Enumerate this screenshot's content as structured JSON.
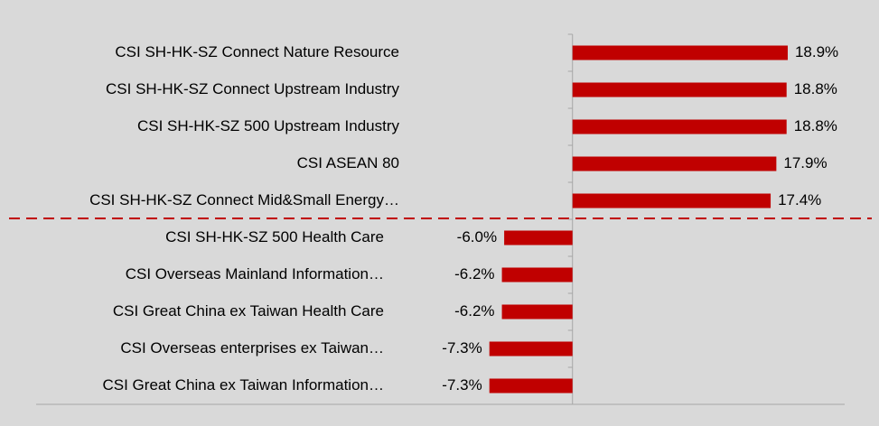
{
  "chart_data": {
    "type": "bar",
    "orientation": "horizontal",
    "categories": [
      "CSI SH-HK-SZ Connect Nature Resource",
      "CSI SH-HK-SZ Connect Upstream Industry",
      "CSI SH-HK-SZ 500 Upstream Industry",
      "CSI ASEAN 80",
      "CSI SH-HK-SZ Connect Mid&Small Energy…",
      "CSI SH-HK-SZ 500 Health Care",
      "CSI Overseas Mainland Information…",
      "CSI Great China ex Taiwan Health Care",
      "CSI Overseas enterprises ex Taiwan…",
      "CSI Great China ex Taiwan Information…"
    ],
    "values": [
      18.9,
      18.8,
      18.8,
      17.9,
      17.4,
      -6.0,
      -6.2,
      -6.2,
      -7.3,
      -7.3
    ],
    "value_labels": [
      "18.9%",
      "18.8%",
      "18.8%",
      "17.9%",
      "17.4%",
      "-6.0%",
      "-6.2%",
      "-6.2%",
      "-7.3%",
      "-7.3%"
    ],
    "color": "#c00000",
    "xlim": [
      -47.1,
      23.9
    ]
  }
}
